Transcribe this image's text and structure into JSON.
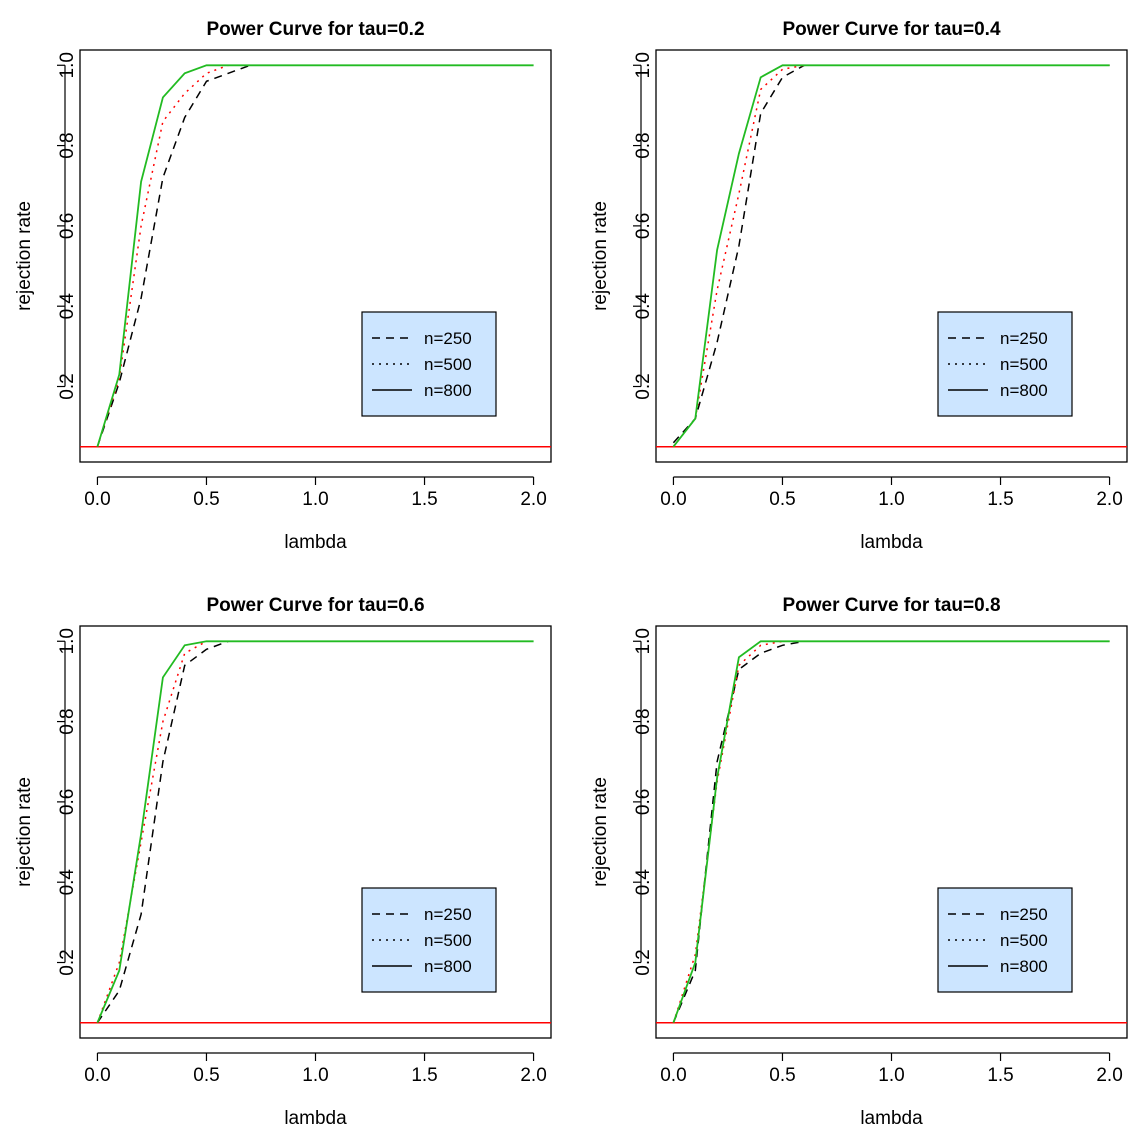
{
  "chart_data": [
    {
      "type": "line",
      "title": "Power Curve for tau=0.2",
      "xlabel": "lambda",
      "ylabel": "rejection rate",
      "xlim": [
        0,
        2
      ],
      "ylim": [
        0.05,
        1.0
      ],
      "xticks": [
        "0.0",
        "0.5",
        "1.0",
        "1.5",
        "2.0"
      ],
      "yticks": [
        "0.2",
        "0.4",
        "0.6",
        "0.8",
        "1.0"
      ],
      "x": [
        0,
        0.1,
        0.2,
        0.3,
        0.4,
        0.5,
        0.6,
        0.7,
        0.8,
        0.9,
        1.0,
        1.1,
        1.2,
        1.3,
        1.4,
        1.5,
        1.6,
        1.7,
        1.8,
        1.9,
        2.0
      ],
      "reference_line": {
        "y": 0.05,
        "color": "#ff0000"
      },
      "legend": {
        "placement": "center-right"
      },
      "series": [
        {
          "name": "n=250",
          "style": "dashed",
          "color": "#000000",
          "values": [
            0.05,
            0.21,
            0.42,
            0.72,
            0.87,
            0.96,
            0.98,
            1.0,
            1.0,
            1.0,
            1.0,
            1.0,
            1.0,
            1.0,
            1.0,
            1.0,
            1.0,
            1.0,
            1.0,
            1.0,
            1.0
          ]
        },
        {
          "name": "n=500",
          "style": "dotted",
          "color": "#ff0000",
          "values": [
            0.05,
            0.22,
            0.6,
            0.86,
            0.93,
            0.98,
            1.0,
            1.0,
            1.0,
            1.0,
            1.0,
            1.0,
            1.0,
            1.0,
            1.0,
            1.0,
            1.0,
            1.0,
            1.0,
            1.0,
            1.0
          ]
        },
        {
          "name": "n=800",
          "style": "solid",
          "color": "#22bb22",
          "values": [
            0.05,
            0.23,
            0.71,
            0.92,
            0.98,
            1.0,
            1.0,
            1.0,
            1.0,
            1.0,
            1.0,
            1.0,
            1.0,
            1.0,
            1.0,
            1.0,
            1.0,
            1.0,
            1.0,
            1.0,
            1.0
          ]
        }
      ]
    },
    {
      "type": "line",
      "title": "Power Curve for tau=0.4",
      "xlabel": "lambda",
      "ylabel": "rejection rate",
      "xlim": [
        0,
        2
      ],
      "ylim": [
        0.05,
        1.0
      ],
      "xticks": [
        "0.0",
        "0.5",
        "1.0",
        "1.5",
        "2.0"
      ],
      "yticks": [
        "0.2",
        "0.4",
        "0.6",
        "0.8",
        "1.0"
      ],
      "x": [
        0,
        0.1,
        0.2,
        0.3,
        0.4,
        0.5,
        0.6,
        0.7,
        0.8,
        0.9,
        1.0,
        1.1,
        1.2,
        1.3,
        1.4,
        1.5,
        1.6,
        1.7,
        1.8,
        1.9,
        2.0
      ],
      "reference_line": {
        "y": 0.05,
        "color": "#ff0000"
      },
      "legend": {
        "placement": "center-right"
      },
      "series": [
        {
          "name": "n=250",
          "style": "dashed",
          "color": "#000000",
          "values": [
            0.06,
            0.12,
            0.31,
            0.55,
            0.88,
            0.97,
            1.0,
            1.0,
            1.0,
            1.0,
            1.0,
            1.0,
            1.0,
            1.0,
            1.0,
            1.0,
            1.0,
            1.0,
            1.0,
            1.0,
            1.0
          ]
        },
        {
          "name": "n=500",
          "style": "dotted",
          "color": "#ff0000",
          "values": [
            0.05,
            0.12,
            0.44,
            0.68,
            0.94,
            0.99,
            1.0,
            1.0,
            1.0,
            1.0,
            1.0,
            1.0,
            1.0,
            1.0,
            1.0,
            1.0,
            1.0,
            1.0,
            1.0,
            1.0,
            1.0
          ]
        },
        {
          "name": "n=800",
          "style": "solid",
          "color": "#22bb22",
          "values": [
            0.05,
            0.12,
            0.54,
            0.78,
            0.97,
            1.0,
            1.0,
            1.0,
            1.0,
            1.0,
            1.0,
            1.0,
            1.0,
            1.0,
            1.0,
            1.0,
            1.0,
            1.0,
            1.0,
            1.0,
            1.0
          ]
        }
      ]
    },
    {
      "type": "line",
      "title": "Power Curve for tau=0.6",
      "xlabel": "lambda",
      "ylabel": "rejection rate",
      "xlim": [
        0,
        2
      ],
      "ylim": [
        0.05,
        1.0
      ],
      "xticks": [
        "0.0",
        "0.5",
        "1.0",
        "1.5",
        "2.0"
      ],
      "yticks": [
        "0.2",
        "0.4",
        "0.6",
        "0.8",
        "1.0"
      ],
      "x": [
        0,
        0.1,
        0.2,
        0.3,
        0.4,
        0.5,
        0.6,
        0.7,
        0.8,
        0.9,
        1.0,
        1.1,
        1.2,
        1.3,
        1.4,
        1.5,
        1.6,
        1.7,
        1.8,
        1.9,
        2.0
      ],
      "reference_line": {
        "y": 0.05,
        "color": "#ff0000"
      },
      "legend": {
        "placement": "center-right"
      },
      "series": [
        {
          "name": "n=250",
          "style": "dashed",
          "color": "#000000",
          "values": [
            0.05,
            0.13,
            0.32,
            0.7,
            0.94,
            0.98,
            1.0,
            1.0,
            1.0,
            1.0,
            1.0,
            1.0,
            1.0,
            1.0,
            1.0,
            1.0,
            1.0,
            1.0,
            1.0,
            1.0,
            1.0
          ]
        },
        {
          "name": "n=500",
          "style": "dotted",
          "color": "#ff0000",
          "values": [
            0.05,
            0.2,
            0.5,
            0.8,
            0.97,
            1.0,
            1.0,
            1.0,
            1.0,
            1.0,
            1.0,
            1.0,
            1.0,
            1.0,
            1.0,
            1.0,
            1.0,
            1.0,
            1.0,
            1.0,
            1.0
          ]
        },
        {
          "name": "n=800",
          "style": "solid",
          "color": "#22bb22",
          "values": [
            0.05,
            0.18,
            0.52,
            0.91,
            0.99,
            1.0,
            1.0,
            1.0,
            1.0,
            1.0,
            1.0,
            1.0,
            1.0,
            1.0,
            1.0,
            1.0,
            1.0,
            1.0,
            1.0,
            1.0,
            1.0
          ]
        }
      ]
    },
    {
      "type": "line",
      "title": "Power Curve for tau=0.8",
      "xlabel": "lambda",
      "ylabel": "rejection rate",
      "xlim": [
        0,
        2
      ],
      "ylim": [
        0.05,
        1.0
      ],
      "xticks": [
        "0.0",
        "0.5",
        "1.0",
        "1.5",
        "2.0"
      ],
      "yticks": [
        "0.2",
        "0.4",
        "0.6",
        "0.8",
        "1.0"
      ],
      "x": [
        0,
        0.1,
        0.2,
        0.3,
        0.4,
        0.5,
        0.6,
        0.7,
        0.8,
        0.9,
        1.0,
        1.1,
        1.2,
        1.3,
        1.4,
        1.5,
        1.6,
        1.7,
        1.8,
        1.9,
        2.0
      ],
      "reference_line": {
        "y": 0.05,
        "color": "#ff0000"
      },
      "legend": {
        "placement": "center-right"
      },
      "series": [
        {
          "name": "n=250",
          "style": "dashed",
          "color": "#000000",
          "values": [
            0.05,
            0.18,
            0.7,
            0.93,
            0.97,
            0.99,
            1.0,
            1.0,
            1.0,
            1.0,
            1.0,
            1.0,
            1.0,
            1.0,
            1.0,
            1.0,
            1.0,
            1.0,
            1.0,
            1.0,
            1.0
          ]
        },
        {
          "name": "n=500",
          "style": "dotted",
          "color": "#ff0000",
          "values": [
            0.05,
            0.22,
            0.65,
            0.94,
            0.99,
            1.0,
            1.0,
            1.0,
            1.0,
            1.0,
            1.0,
            1.0,
            1.0,
            1.0,
            1.0,
            1.0,
            1.0,
            1.0,
            1.0,
            1.0,
            1.0
          ]
        },
        {
          "name": "n=800",
          "style": "solid",
          "color": "#22bb22",
          "values": [
            0.05,
            0.2,
            0.66,
            0.96,
            1.0,
            1.0,
            1.0,
            1.0,
            1.0,
            1.0,
            1.0,
            1.0,
            1.0,
            1.0,
            1.0,
            1.0,
            1.0,
            1.0,
            1.0,
            1.0,
            1.0
          ]
        }
      ]
    }
  ],
  "legend_box_color": "#cce5ff"
}
